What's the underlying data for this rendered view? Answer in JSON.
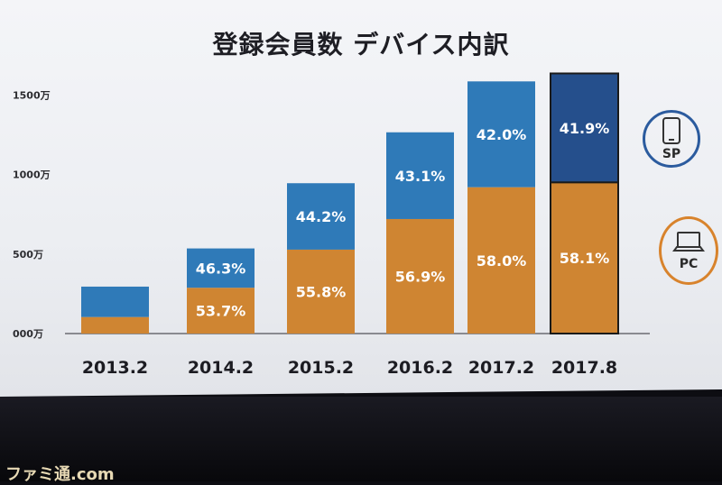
{
  "title": "登録会員数 デバイス内訳",
  "watermark": "ファミ通.com",
  "legend": {
    "sp": {
      "label": "SP",
      "icon": "smartphone-icon",
      "color": "#2f7ab8"
    },
    "pc": {
      "label": "PC",
      "icon": "laptop-icon",
      "color": "#cf8532"
    }
  },
  "colors": {
    "sp": "#2f7ab8",
    "pc": "#cf8532",
    "sp_dark": "#254f8c"
  },
  "chart_data": {
    "type": "bar",
    "stacked": true,
    "title": "登録会員数 デバイス内訳",
    "categories": [
      "2013.2",
      "2014.2",
      "2015.2",
      "2016.2",
      "2017.2",
      "2017.8"
    ],
    "yticks": [
      "000万",
      "500万",
      "1000万",
      "1500万"
    ],
    "ylim": [
      0,
      1700
    ],
    "y_unit": "万",
    "totals": [
      295,
      535,
      945,
      1265,
      1585,
      1635
    ],
    "series": [
      {
        "name": "PC",
        "share_labels": [
          "",
          "53.7%",
          "55.8%",
          "56.9%",
          "58.0%",
          "58.1%"
        ],
        "share": [
          null,
          53.7,
          55.8,
          56.9,
          58.0,
          58.1
        ]
      },
      {
        "name": "SP",
        "share_labels": [
          "",
          "46.3%",
          "44.2%",
          "43.1%",
          "42.0%",
          "41.9%"
        ],
        "share": [
          null,
          46.3,
          44.2,
          43.1,
          42.0,
          41.9
        ]
      }
    ],
    "first_bar_pc_fraction": 0.35,
    "grid": false,
    "legend_position": "right"
  }
}
